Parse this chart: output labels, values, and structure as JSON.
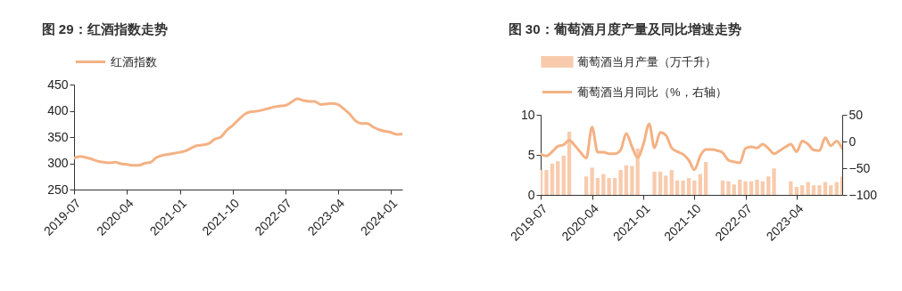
{
  "chart_data": [
    {
      "type": "line",
      "title": "图 29：红酒指数走势",
      "x": [
        "2019-07",
        "2019-08",
        "2019-09",
        "2019-10",
        "2019-11",
        "2019-12",
        "2020-01",
        "2020-02",
        "2020-03",
        "2020-04",
        "2020-05",
        "2020-06",
        "2020-07",
        "2020-08",
        "2020-09",
        "2020-10",
        "2020-11",
        "2020-12",
        "2021-01",
        "2021-02",
        "2021-03",
        "2021-04",
        "2021-05",
        "2021-06",
        "2021-07",
        "2021-08",
        "2021-09",
        "2021-10",
        "2021-11",
        "2021-12",
        "2022-01",
        "2022-02",
        "2022-03",
        "2022-04",
        "2022-05",
        "2022-06",
        "2022-07",
        "2022-08",
        "2022-09",
        "2022-10",
        "2022-11",
        "2022-12",
        "2023-01",
        "2023-02",
        "2023-03",
        "2023-04",
        "2023-05",
        "2023-06",
        "2023-07",
        "2023-08",
        "2023-09",
        "2023-10",
        "2023-11",
        "2023-12",
        "2024-01",
        "2024-02",
        "2024-03"
      ],
      "series": [
        {
          "name": "红酒指数",
          "color": "#f4b183",
          "values": [
            310,
            313,
            311,
            308,
            304,
            302,
            301,
            302,
            299,
            298,
            296,
            296,
            300,
            302,
            311,
            315,
            317,
            319,
            321,
            324,
            329,
            334,
            335,
            338,
            346,
            350,
            363,
            372,
            383,
            393,
            398,
            399,
            401,
            404,
            407,
            409,
            410,
            416,
            423,
            420,
            418,
            418,
            412,
            413,
            414,
            412,
            404,
            394,
            381,
            376,
            376,
            369,
            364,
            361,
            359,
            355,
            356
          ]
        }
      ],
      "xlim": [
        "2019-07",
        "2024-03"
      ],
      "xticks": [
        "2019-07",
        "2020-04",
        "2021-01",
        "2021-10",
        "2022-07",
        "2023-04",
        "2024-01"
      ],
      "ylim": [
        250,
        450
      ],
      "yticks": [
        250,
        300,
        350,
        400,
        450
      ],
      "grid": false,
      "legend": "top",
      "marker": "none",
      "line_style": "solid"
    },
    {
      "type": "bar",
      "title": "图 30：葡萄酒月度产量及同比增速走势",
      "x": [
        "2019-07",
        "2019-08",
        "2019-09",
        "2019-10",
        "2019-11",
        "2019-12",
        "2020-01",
        "2020-02",
        "2020-03",
        "2020-04",
        "2020-05",
        "2020-06",
        "2020-07",
        "2020-08",
        "2020-09",
        "2020-10",
        "2020-11",
        "2020-12",
        "2021-01",
        "2021-02",
        "2021-03",
        "2021-04",
        "2021-05",
        "2021-06",
        "2021-07",
        "2021-08",
        "2021-09",
        "2021-10",
        "2021-11",
        "2021-12",
        "2022-01",
        "2022-02",
        "2022-03",
        "2022-04",
        "2022-05",
        "2022-06",
        "2022-07",
        "2022-08",
        "2022-09",
        "2022-10",
        "2022-11",
        "2022-12",
        "2023-01",
        "2023-02",
        "2023-03",
        "2023-04",
        "2023-05",
        "2023-06",
        "2023-07",
        "2023-08",
        "2023-09",
        "2023-10",
        "2023-11",
        "2023-12"
      ],
      "series": [
        {
          "name": "葡萄酒当月产量（万千升）",
          "color": "#f8cbad",
          "values": [
            3.1,
            3.1,
            3.9,
            4.2,
            4.9,
            7.9,
            null,
            null,
            2.3,
            3.4,
            2.1,
            2.6,
            2.1,
            2.1,
            3.1,
            3.7,
            3.6,
            5.8,
            null,
            null,
            2.9,
            2.9,
            2.4,
            3.1,
            1.8,
            1.8,
            2.1,
            1.8,
            2.6,
            4.1,
            null,
            null,
            1.8,
            1.7,
            1.3,
            1.9,
            1.7,
            1.7,
            1.9,
            1.7,
            2.3,
            3.3,
            null,
            null,
            1.7,
            1.0,
            1.2,
            1.6,
            1.2,
            1.2,
            1.6,
            1.2,
            1.6,
            2.3
          ]
        },
        {
          "name": "葡萄酒当月同比（%，右轴）",
          "type": "line",
          "axis": "y2",
          "color": "#f4b183",
          "values": [
            -24,
            -27,
            -19,
            -9,
            -6,
            2,
            -8,
            -21,
            -31,
            27,
            -20,
            -20,
            -23,
            -23,
            -16,
            15,
            -10,
            -30,
            -5,
            33,
            -12,
            17,
            12,
            -12,
            -19,
            -24,
            -35,
            -53,
            -27,
            -15,
            -15,
            -17,
            -21,
            -35,
            -38,
            -40,
            -13,
            -10,
            -12,
            -5,
            -13,
            -23,
            -17,
            -10,
            -5,
            -19,
            1,
            -5,
            -16,
            -17,
            7,
            -8,
            1,
            -13
          ]
        }
      ],
      "xlim": [
        "2019-07",
        "2023-12"
      ],
      "xticks": [
        "2019-07",
        "2020-04",
        "2021-01",
        "2021-10",
        "2022-07",
        "2023-04"
      ],
      "ylim": [
        0,
        10
      ],
      "yticks": [
        0,
        5,
        10
      ],
      "y2lim": [
        -100,
        50
      ],
      "y2ticks": [
        -100,
        -50,
        0,
        50
      ],
      "grid": false,
      "legend": "top",
      "marker": "none",
      "line_style": "solid"
    }
  ]
}
